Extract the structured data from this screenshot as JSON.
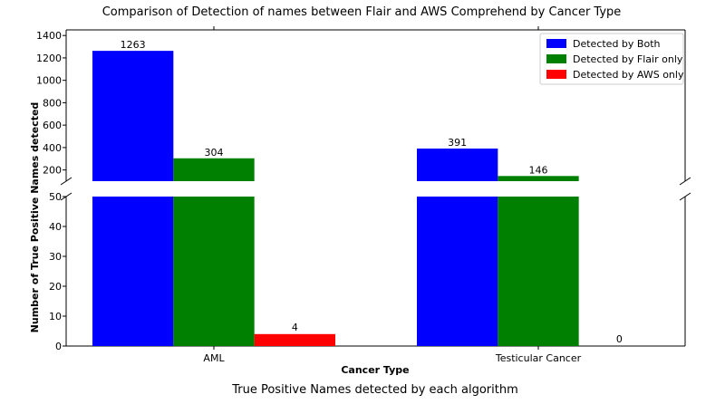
{
  "chart_data": {
    "type": "bar",
    "title": "Comparison of Detection of names between Flair and AWS Comprehend by Cancer Type",
    "caption": "True Positive Names detected by each algorithm",
    "xlabel": "Cancer Type",
    "ylabel": "Number of True Positive Names detected",
    "categories": [
      "AML",
      "Testicular Cancer"
    ],
    "series": [
      {
        "name": "Detected by Both",
        "values": [
          1263,
          391
        ],
        "color": "#0000ff"
      },
      {
        "name": "Detected by Flair only",
        "values": [
          304,
          146
        ],
        "color": "#008000"
      },
      {
        "name": "Detected by AWS only",
        "values": [
          4,
          0
        ],
        "color": "#ff0000"
      }
    ],
    "broken_axis": {
      "upper_ylim": [
        100,
        1450
      ],
      "upper_ticks": [
        "200",
        "400",
        "600",
        "800",
        "1000",
        "1200",
        "1400"
      ],
      "lower_ylim": [
        0,
        50
      ],
      "lower_ticks": [
        "0",
        "10",
        "20",
        "30",
        "40",
        "50"
      ]
    },
    "legend_position": "top-right",
    "grid": false
  }
}
